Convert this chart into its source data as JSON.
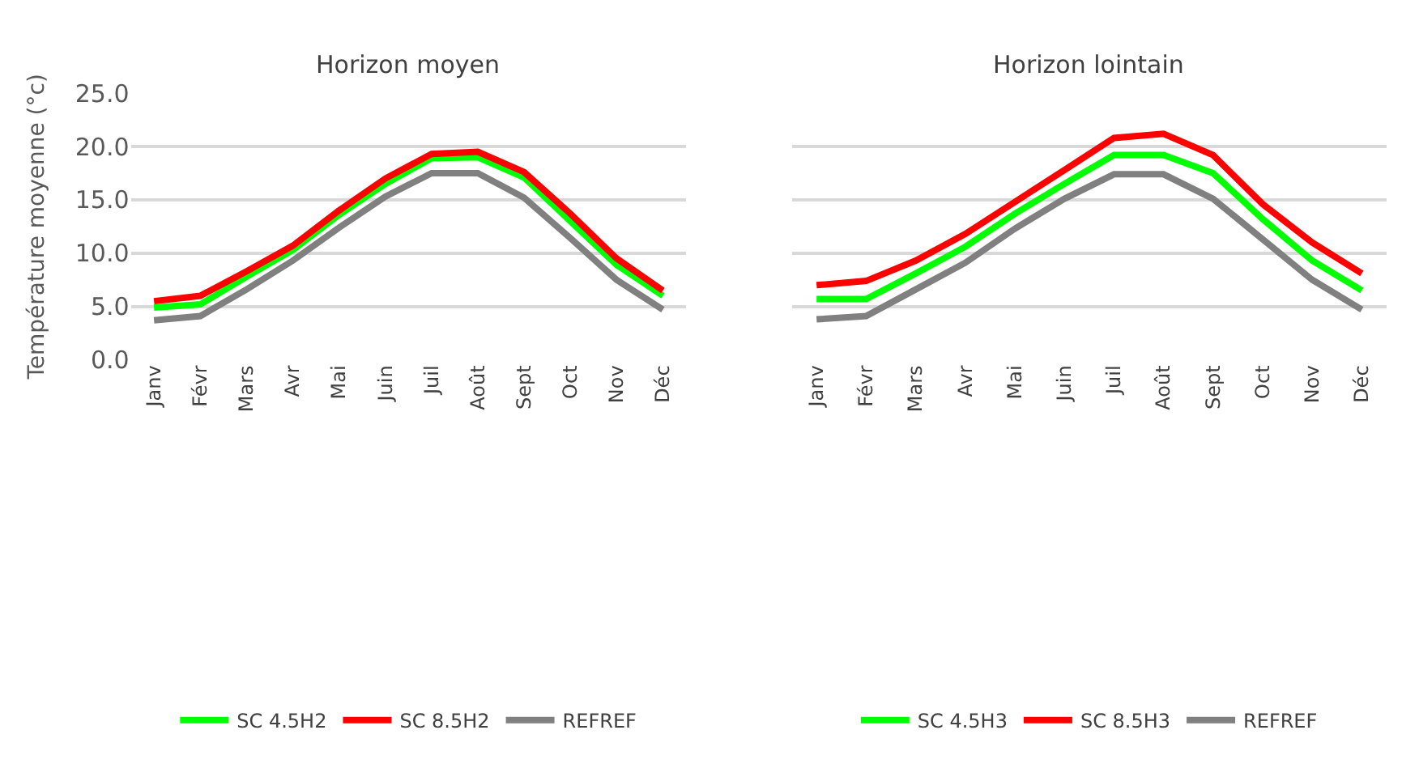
{
  "chart_data": [
    {
      "type": "line",
      "title": "Horizon moyen",
      "ylabel": "Température moyenne (°c)",
      "categories": [
        "Janv",
        "Févr",
        "Mars",
        "Avr",
        "Mai",
        "Juin",
        "Juil",
        "Août",
        "Sept",
        "Oct",
        "Nov",
        "Déc"
      ],
      "ylim": [
        0,
        25
      ],
      "yticks": [
        {
          "value": 0,
          "label": "0.0"
        },
        {
          "value": 5,
          "label": "5.0"
        },
        {
          "value": 10,
          "label": "10.0"
        },
        {
          "value": 15,
          "label": "15.0"
        },
        {
          "value": 20,
          "label": "20.0"
        },
        {
          "value": 25,
          "label": "25.0"
        }
      ],
      "grid": "y",
      "legend": "bottom",
      "series": [
        {
          "name": "SC 4.5H2",
          "color": "#00ff00",
          "values": [
            4.9,
            5.2,
            7.8,
            10.3,
            13.6,
            16.5,
            18.9,
            19.0,
            17.1,
            13.0,
            8.9,
            6.0
          ]
        },
        {
          "name": "SC 8.5H2",
          "color": "#ff0000",
          "values": [
            5.5,
            6.0,
            8.3,
            10.7,
            14.0,
            17.0,
            19.3,
            19.5,
            17.6,
            13.7,
            9.5,
            6.5
          ]
        },
        {
          "name": "REFREF",
          "color": "#808080",
          "values": [
            3.7,
            4.1,
            6.6,
            9.3,
            12.4,
            15.3,
            17.5,
            17.5,
            15.2,
            11.4,
            7.5,
            4.7
          ]
        }
      ]
    },
    {
      "type": "line",
      "title": "Horizon lointain",
      "categories": [
        "Janv",
        "Févr",
        "Mars",
        "Avr",
        "Mai",
        "Juin",
        "Juil",
        "Août",
        "Sept",
        "Oct",
        "Nov",
        "Déc"
      ],
      "ylim": [
        0,
        25
      ],
      "yticks": [
        0,
        5,
        10,
        15,
        20,
        25
      ],
      "grid": "y",
      "legend": "bottom",
      "tick_labels": "x",
      "series": [
        {
          "name": "SC 4.5H3",
          "color": "#00ff00",
          "values": [
            5.7,
            5.7,
            8.1,
            10.6,
            13.7,
            16.5,
            19.2,
            19.2,
            17.5,
            13.2,
            9.3,
            6.5
          ]
        },
        {
          "name": "SC 8.5H3",
          "color": "#ff0000",
          "values": [
            7.0,
            7.4,
            9.3,
            11.8,
            14.8,
            17.8,
            20.8,
            21.2,
            19.2,
            14.6,
            11.0,
            8.1
          ]
        },
        {
          "name": "REFREF",
          "color": "#808080",
          "values": [
            3.8,
            4.1,
            6.6,
            9.1,
            12.3,
            15.1,
            17.4,
            17.4,
            15.1,
            11.3,
            7.5,
            4.7
          ]
        }
      ]
    }
  ]
}
